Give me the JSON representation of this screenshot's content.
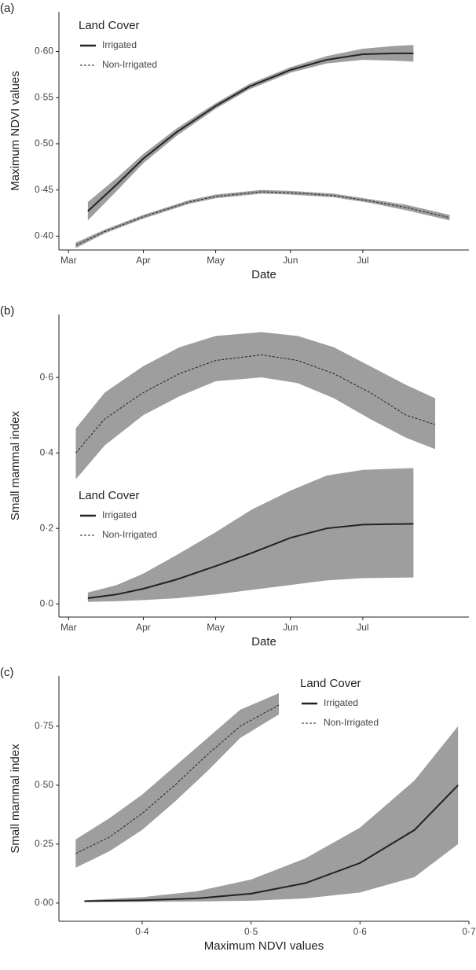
{
  "chart_data": [
    {
      "type": "line",
      "panel_label": "(a)",
      "y_label": "Maximum NDVI values",
      "x_label": "Date",
      "legend_title": "Land Cover",
      "legend_position": "top-left",
      "xlim": [
        -4,
        166
      ],
      "xticks": [
        {
          "value": 0,
          "label": "Mar"
        },
        {
          "value": 31,
          "label": "Apr"
        },
        {
          "value": 61,
          "label": "May"
        },
        {
          "value": 92,
          "label": "Jun"
        },
        {
          "value": 122,
          "label": "Jul"
        }
      ],
      "ylim": [
        0.385,
        0.643
      ],
      "yticks": [
        {
          "value": 0.4,
          "label": "0·40"
        },
        {
          "value": 0.45,
          "label": "0·45"
        },
        {
          "value": 0.5,
          "label": "0·50"
        },
        {
          "value": 0.55,
          "label": "0·55"
        },
        {
          "value": 0.6,
          "label": "0·60"
        }
      ],
      "band_color": "#9e9e9e",
      "series": [
        {
          "name": "Irrigated",
          "color": "#222222",
          "line_style": "solid",
          "x": [
            8,
            20,
            31,
            45,
            61,
            75,
            92,
            107,
            122,
            135,
            143
          ],
          "values": [
            0.427,
            0.456,
            0.484,
            0.513,
            0.541,
            0.562,
            0.58,
            0.591,
            0.597,
            0.598,
            0.598
          ],
          "lower": [
            0.417,
            0.449,
            0.479,
            0.509,
            0.538,
            0.559,
            0.577,
            0.587,
            0.591,
            0.59,
            0.589
          ],
          "upper": [
            0.437,
            0.463,
            0.489,
            0.517,
            0.544,
            0.565,
            0.583,
            0.595,
            0.603,
            0.606,
            0.607
          ]
        },
        {
          "name": "Non-Irrigated",
          "color": "#222222",
          "line_style": "dotted",
          "x": [
            3,
            15,
            31,
            50,
            61,
            80,
            92,
            110,
            125,
            140,
            158
          ],
          "values": [
            0.39,
            0.405,
            0.421,
            0.437,
            0.443,
            0.448,
            0.447,
            0.444,
            0.438,
            0.431,
            0.42
          ],
          "lower": [
            0.387,
            0.403,
            0.419,
            0.435,
            0.441,
            0.446,
            0.445,
            0.442,
            0.436,
            0.428,
            0.417
          ],
          "upper": [
            0.393,
            0.407,
            0.423,
            0.439,
            0.445,
            0.45,
            0.449,
            0.446,
            0.44,
            0.434,
            0.423
          ]
        }
      ]
    },
    {
      "type": "line",
      "panel_label": "(b)",
      "y_label": "Small mammal index",
      "x_label": "Date",
      "legend_title": "Land Cover",
      "legend_position": "center-left",
      "xlim": [
        -4,
        166
      ],
      "xticks": [
        {
          "value": 0,
          "label": "Mar"
        },
        {
          "value": 31,
          "label": "Apr"
        },
        {
          "value": 61,
          "label": "May"
        },
        {
          "value": 92,
          "label": "Jun"
        },
        {
          "value": 122,
          "label": "Jul"
        }
      ],
      "ylim": [
        -0.035,
        0.767
      ],
      "yticks": [
        {
          "value": 0,
          "label": "0·0"
        },
        {
          "value": 0.2,
          "label": "0·2"
        },
        {
          "value": 0.4,
          "label": "0·4"
        },
        {
          "value": 0.6,
          "label": "0·6"
        }
      ],
      "band_color": "#9e9e9e",
      "series": [
        {
          "name": "Irrigated",
          "color": "#222222",
          "line_style": "solid",
          "x": [
            8,
            20,
            31,
            45,
            61,
            76,
            92,
            107,
            122,
            143
          ],
          "values": [
            0.015,
            0.025,
            0.04,
            0.065,
            0.1,
            0.135,
            0.175,
            0.2,
            0.21,
            0.212
          ],
          "lower": [
            0.005,
            0.007,
            0.01,
            0.015,
            0.025,
            0.037,
            0.05,
            0.062,
            0.068,
            0.07
          ],
          "upper": [
            0.03,
            0.05,
            0.08,
            0.13,
            0.19,
            0.25,
            0.3,
            0.34,
            0.355,
            0.36
          ]
        },
        {
          "name": "Non-Irrigated",
          "color": "#222222",
          "line_style": "dotted",
          "x": [
            3,
            15,
            31,
            46,
            61,
            80,
            95,
            110,
            125,
            140,
            152
          ],
          "values": [
            0.4,
            0.49,
            0.56,
            0.61,
            0.645,
            0.66,
            0.645,
            0.61,
            0.56,
            0.5,
            0.475
          ],
          "lower": [
            0.33,
            0.42,
            0.5,
            0.55,
            0.59,
            0.6,
            0.585,
            0.545,
            0.49,
            0.44,
            0.41
          ],
          "upper": [
            0.465,
            0.56,
            0.63,
            0.68,
            0.71,
            0.72,
            0.71,
            0.68,
            0.63,
            0.58,
            0.545
          ]
        }
      ]
    },
    {
      "type": "line",
      "panel_label": "(c)",
      "y_label": "Small mammal index",
      "x_label": "Maximum NDVI values",
      "legend_title": "Land Cover",
      "legend_position": "top-right",
      "xlim": [
        0.3236,
        0.7
      ],
      "xticks": [
        {
          "value": 0.4,
          "label": "0·4"
        },
        {
          "value": 0.5,
          "label": "0·5"
        },
        {
          "value": 0.6,
          "label": "0·6"
        },
        {
          "value": 0.7,
          "label": "0·7"
        }
      ],
      "ylim": [
        -0.077,
        0.963
      ],
      "yticks": [
        {
          "value": 0,
          "label": "0·00"
        },
        {
          "value": 0.25,
          "label": "0·25"
        },
        {
          "value": 0.5,
          "label": "0·50"
        },
        {
          "value": 0.75,
          "label": "0·75"
        }
      ],
      "band_color": "#9e9e9e",
      "series": [
        {
          "name": "Irrigated",
          "color": "#222222",
          "line_style": "solid",
          "x": [
            0.347,
            0.4,
            0.45,
            0.5,
            0.55,
            0.6,
            0.65,
            0.69
          ],
          "values": [
            0.008,
            0.012,
            0.02,
            0.04,
            0.085,
            0.17,
            0.31,
            0.5
          ],
          "lower": [
            0.005,
            0.005,
            0.007,
            0.01,
            0.02,
            0.045,
            0.11,
            0.25
          ],
          "upper": [
            0.012,
            0.025,
            0.05,
            0.1,
            0.19,
            0.32,
            0.52,
            0.75
          ]
        },
        {
          "name": "Non-Irrigated",
          "color": "#222222",
          "line_style": "dotted",
          "x": [
            0.339,
            0.37,
            0.4,
            0.43,
            0.46,
            0.49,
            0.5255
          ],
          "values": [
            0.21,
            0.28,
            0.38,
            0.5,
            0.63,
            0.75,
            0.84
          ],
          "lower": [
            0.15,
            0.22,
            0.31,
            0.43,
            0.56,
            0.7,
            0.8
          ],
          "upper": [
            0.27,
            0.36,
            0.46,
            0.58,
            0.7,
            0.82,
            0.89
          ]
        }
      ]
    }
  ]
}
